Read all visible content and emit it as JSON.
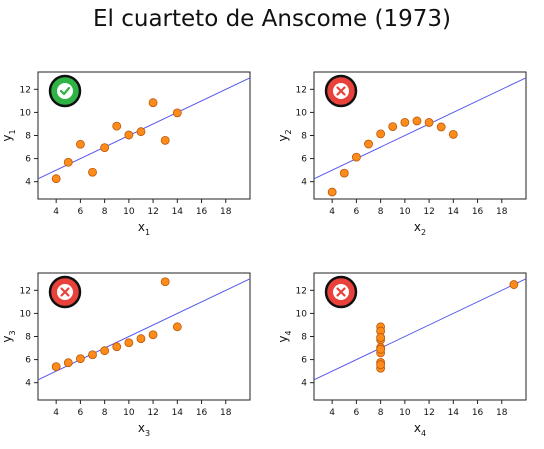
{
  "title": "El cuarteto de Anscome (1973)",
  "colors": {
    "point": "#ff8c1a",
    "point_stroke": "#b8560a",
    "line": "#5555ee",
    "ok_badge": "#2fb344",
    "bad_badge": "#e8423b"
  },
  "chart_data": [
    {
      "type": "scatter",
      "xlabel": "x",
      "xlabel_sub": "1",
      "ylabel": "y",
      "ylabel_sub": "1",
      "x_ticks": [
        4,
        6,
        8,
        10,
        12,
        14,
        16,
        18
      ],
      "y_ticks": [
        4,
        6,
        8,
        10,
        12
      ],
      "xlim": [
        2.5,
        20
      ],
      "ylim": [
        2.5,
        13.5
      ],
      "grid": false,
      "x": [
        10,
        8,
        13,
        9,
        11,
        14,
        6,
        4,
        12,
        7,
        5
      ],
      "y": [
        8.04,
        6.95,
        7.58,
        8.81,
        8.33,
        9.96,
        7.24,
        4.26,
        10.84,
        4.82,
        5.68
      ],
      "fit": {
        "intercept": 3.0,
        "slope": 0.5
      },
      "badge": "check-icon"
    },
    {
      "type": "scatter",
      "xlabel": "x",
      "xlabel_sub": "2",
      "ylabel": "y",
      "ylabel_sub": "2",
      "x_ticks": [
        4,
        6,
        8,
        10,
        12,
        14,
        16,
        18
      ],
      "y_ticks": [
        4,
        6,
        8,
        10,
        12
      ],
      "xlim": [
        2.5,
        20
      ],
      "ylim": [
        2.5,
        13.5
      ],
      "grid": false,
      "x": [
        10,
        8,
        13,
        9,
        11,
        14,
        6,
        4,
        12,
        7,
        5
      ],
      "y": [
        9.14,
        8.14,
        8.74,
        8.77,
        9.26,
        8.1,
        6.13,
        3.1,
        9.13,
        7.26,
        4.74
      ],
      "fit": {
        "intercept": 3.0,
        "slope": 0.5
      },
      "badge": "cross-icon"
    },
    {
      "type": "scatter",
      "xlabel": "x",
      "xlabel_sub": "3",
      "ylabel": "y",
      "ylabel_sub": "3",
      "x_ticks": [
        4,
        6,
        8,
        10,
        12,
        14,
        16,
        18
      ],
      "y_ticks": [
        4,
        6,
        8,
        10,
        12
      ],
      "xlim": [
        2.5,
        20
      ],
      "ylim": [
        2.5,
        13.5
      ],
      "grid": false,
      "x": [
        10,
        8,
        13,
        9,
        11,
        14,
        6,
        4,
        12,
        7,
        5
      ],
      "y": [
        7.46,
        6.77,
        12.74,
        7.11,
        7.81,
        8.84,
        6.08,
        5.39,
        8.15,
        6.42,
        5.73
      ],
      "fit": {
        "intercept": 3.0,
        "slope": 0.5
      },
      "badge": "cross-icon"
    },
    {
      "type": "scatter",
      "xlabel": "x",
      "xlabel_sub": "4",
      "ylabel": "y",
      "ylabel_sub": "4",
      "x_ticks": [
        4,
        6,
        8,
        10,
        12,
        14,
        16,
        18
      ],
      "y_ticks": [
        4,
        6,
        8,
        10,
        12
      ],
      "xlim": [
        2.5,
        20
      ],
      "ylim": [
        2.5,
        13.5
      ],
      "grid": false,
      "x": [
        8,
        8,
        8,
        8,
        8,
        8,
        8,
        19,
        8,
        8,
        8
      ],
      "y": [
        6.58,
        5.76,
        7.71,
        8.84,
        8.47,
        7.04,
        5.25,
        12.5,
        5.56,
        7.91,
        6.89
      ],
      "fit": {
        "intercept": 3.0,
        "slope": 0.5
      },
      "badge": "cross-icon"
    }
  ]
}
